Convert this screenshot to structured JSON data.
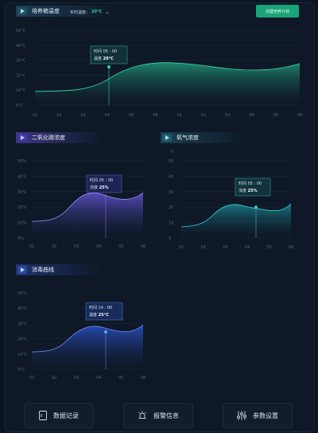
{
  "colors": {
    "bg": "#0b1522",
    "green": "#2fd39b",
    "purple": "#6c5fd8",
    "teal": "#1f8d9a",
    "blue": "#2f58c8"
  },
  "header": {
    "title": "培养箱温度",
    "realtime_label": "实时温度：",
    "realtime_value": "20°C",
    "create_button": "创建培养计划"
  },
  "temp_chart": {
    "y_ticks": [
      "0°C",
      "10°C",
      "20°C",
      "30°C",
      "40°C",
      "50°C"
    ],
    "x_ticks": [
      "01",
      "02",
      "03",
      "04",
      "05",
      "06",
      "01",
      "02",
      "03",
      "04",
      "05",
      "06"
    ],
    "tooltip": {
      "time_label": "时间",
      "time": "05 : 00",
      "value_label": "温度",
      "value": "20°C"
    }
  },
  "co2": {
    "title": "二氧化碳浓度",
    "y_ticks": [
      "0%",
      "10%",
      "20%",
      "30%",
      "40%",
      "50%"
    ],
    "x_ticks": [
      "01",
      "02",
      "03",
      "04",
      "05",
      "06"
    ],
    "tooltip": {
      "time_label": "时间",
      "time": "05 : 00",
      "value_label": "浓度",
      "value": "25%"
    }
  },
  "o2": {
    "title": "氧气浓度",
    "unit": "%",
    "y_ticks": [
      "0",
      "10",
      "20",
      "30",
      "40",
      "50"
    ],
    "x_ticks": [
      "01",
      "02",
      "03",
      "04",
      "05",
      "06"
    ],
    "tooltip": {
      "time_label": "时间",
      "time": "05 : 00",
      "value_label": "浓度",
      "value": "25%"
    }
  },
  "disinfect": {
    "title": "消毒曲线",
    "y_ticks": [
      "0°C",
      "10°C",
      "20°C",
      "30°C",
      "40°C",
      "50°C"
    ],
    "x_ticks": [
      "01",
      "02",
      "03",
      "04",
      "05",
      "06"
    ],
    "tooltip": {
      "time_label": "时间",
      "time": "14 : 00",
      "value_label": "温度",
      "value": "25°C"
    }
  },
  "bottom": {
    "records": "数据记录",
    "alarm": "报警信息",
    "params": "参数设置"
  }
}
